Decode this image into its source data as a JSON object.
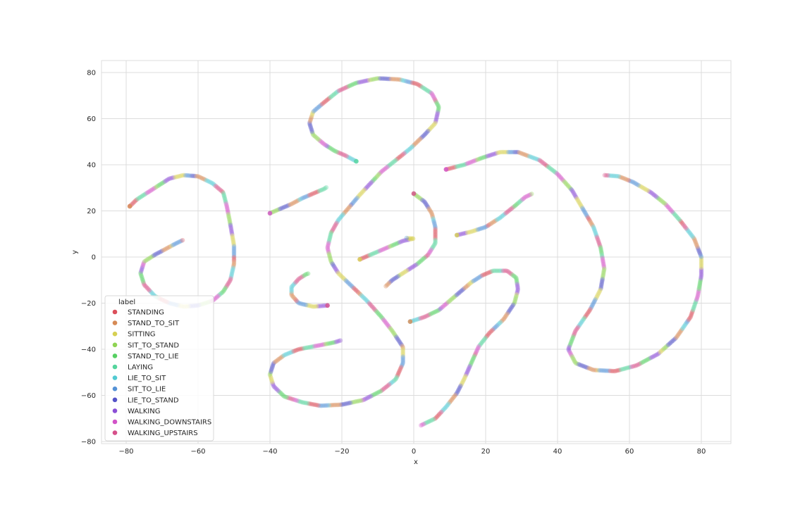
{
  "chart_data": {
    "type": "scatter",
    "title": "",
    "xlabel": "x",
    "ylabel": "y",
    "xlim": [
      -87,
      88
    ],
    "ylim": [
      -81,
      86
    ],
    "xticks": [
      -80,
      -60,
      -40,
      -20,
      0,
      20,
      40,
      60,
      80
    ],
    "yticks": [
      -80,
      -60,
      -40,
      -20,
      0,
      20,
      40,
      60,
      80
    ],
    "grid": true,
    "legend": {
      "title": "label",
      "placement": "lower-left",
      "entries": [
        {
          "label": "STANDING",
          "color": "#db4f5a"
        },
        {
          "label": "STAND_TO_SIT",
          "color": "#d68a55"
        },
        {
          "label": "SITTING",
          "color": "#d6d052"
        },
        {
          "label": "SIT_TO_STAND",
          "color": "#8fd453"
        },
        {
          "label": "STAND_TO_LIE",
          "color": "#56d062"
        },
        {
          "label": "LAYING",
          "color": "#55d59d"
        },
        {
          "label": "LIE_TO_SIT",
          "color": "#52cad2"
        },
        {
          "label": "SIT_TO_LIE",
          "color": "#5592d6"
        },
        {
          "label": "LIE_TO_STAND",
          "color": "#5453c8"
        },
        {
          "label": "WALKING",
          "color": "#8b4fd6"
        },
        {
          "label": "WALKING_DOWNSTAIRS",
          "color": "#d253c8"
        },
        {
          "label": "WALKING_UPSTAIRS",
          "color": "#d6508a"
        }
      ]
    },
    "series": [
      {
        "label_index": 1,
        "points": [
          [
            -79,
            22
          ],
          [
            -77,
            25
          ],
          [
            -74,
            28
          ],
          [
            -71,
            31
          ],
          [
            -68,
            34
          ],
          [
            -64,
            35.5
          ],
          [
            -60,
            35
          ],
          [
            -56,
            32
          ],
          [
            -53,
            28
          ],
          [
            -52,
            22
          ],
          [
            -51,
            14
          ],
          [
            -50,
            5
          ],
          [
            -50,
            -3
          ],
          [
            -51,
            -10
          ],
          [
            -53,
            -15
          ],
          [
            -56,
            -19
          ],
          [
            -60,
            -21
          ],
          [
            -64,
            -21.5
          ],
          [
            -68,
            -20
          ],
          [
            -72,
            -17
          ],
          [
            -75,
            -12
          ],
          [
            -76,
            -7
          ],
          [
            -75,
            -2
          ],
          [
            -72,
            1
          ],
          [
            -69,
            3.5
          ],
          [
            -66,
            6
          ],
          [
            -64,
            7.5
          ]
        ]
      },
      {
        "label_index": 10,
        "points": [
          [
            -40,
            19
          ],
          [
            -37,
            21
          ],
          [
            -34,
            23
          ],
          [
            -31,
            25.5
          ],
          [
            -28,
            27.5
          ],
          [
            -25,
            29.5
          ],
          [
            -24,
            30.5
          ]
        ]
      },
      {
        "label_index": 5,
        "points": [
          [
            -16,
            41.5
          ],
          [
            -19,
            44
          ],
          [
            -22,
            46
          ],
          [
            -25,
            49
          ],
          [
            -28,
            53
          ],
          [
            -29,
            58
          ],
          [
            -28,
            63
          ],
          [
            -25,
            67
          ],
          [
            -21,
            72
          ],
          [
            -16,
            75.5
          ],
          [
            -10,
            77.5
          ],
          [
            -4,
            77
          ],
          [
            1,
            75
          ],
          [
            5,
            71
          ],
          [
            7,
            65
          ],
          [
            6,
            58
          ],
          [
            3,
            53
          ],
          [
            -1,
            47
          ],
          [
            -5,
            42
          ],
          [
            -9,
            37
          ],
          [
            -12,
            32
          ],
          [
            -15,
            27
          ],
          [
            -18,
            21.5
          ],
          [
            -21,
            16
          ],
          [
            -23,
            10.5
          ],
          [
            -24,
            4
          ],
          [
            -23,
            -2
          ],
          [
            -21,
            -7
          ],
          [
            -17,
            -13
          ],
          [
            -13,
            -19
          ],
          [
            -9,
            -26
          ],
          [
            -6,
            -32
          ],
          [
            -3,
            -39
          ],
          [
            -3,
            -46
          ],
          [
            -5,
            -53
          ],
          [
            -9,
            -58
          ],
          [
            -14,
            -62
          ],
          [
            -20,
            -64
          ],
          [
            -26,
            -64.5
          ],
          [
            -31,
            -63
          ],
          [
            -36,
            -60.5
          ],
          [
            -39,
            -56
          ],
          [
            -40,
            -51
          ],
          [
            -39,
            -46
          ],
          [
            -36,
            -42.5
          ],
          [
            -32,
            -40
          ],
          [
            -27,
            -38.5
          ],
          [
            -22,
            -37
          ],
          [
            -20,
            -36
          ]
        ]
      },
      {
        "label_index": 11,
        "points": [
          [
            -24,
            -21
          ],
          [
            -28,
            -21.5
          ],
          [
            -32,
            -20
          ],
          [
            -34,
            -16.5
          ],
          [
            -34,
            -13
          ],
          [
            -32,
            -9.5
          ],
          [
            -30,
            -7.5
          ],
          [
            -29,
            -7
          ]
        ]
      },
      {
        "label_index": 2,
        "points": [
          [
            -15,
            -1
          ],
          [
            -12,
            1
          ],
          [
            -9,
            3
          ],
          [
            -6,
            5
          ],
          [
            -3,
            7
          ],
          [
            0,
            8
          ],
          [
            -2,
            8.2
          ]
        ]
      },
      {
        "label_index": 11,
        "points": [
          [
            0,
            27.5
          ],
          [
            3,
            24
          ],
          [
            5,
            19
          ],
          [
            6,
            13
          ],
          [
            6,
            6
          ],
          [
            4,
            1
          ],
          [
            1,
            -3
          ],
          [
            -3,
            -7
          ],
          [
            -6,
            -10
          ],
          [
            -8,
            -13
          ]
        ]
      },
      {
        "label_index": 1,
        "points": [
          [
            -1,
            -28
          ],
          [
            3,
            -26
          ],
          [
            7,
            -23
          ],
          [
            10,
            -19
          ],
          [
            13,
            -15
          ],
          [
            16,
            -11
          ],
          [
            19,
            -8
          ],
          [
            22,
            -6
          ],
          [
            26,
            -6
          ],
          [
            28.5,
            -9
          ],
          [
            29,
            -14
          ],
          [
            28,
            -20
          ],
          [
            25,
            -27
          ],
          [
            21,
            -33
          ],
          [
            18,
            -39
          ],
          [
            16,
            -46
          ],
          [
            14,
            -53
          ],
          [
            12,
            -59
          ],
          [
            9,
            -65
          ],
          [
            6,
            -70
          ],
          [
            2,
            -73
          ]
        ]
      },
      {
        "label_index": 2,
        "points": [
          [
            12,
            9.5
          ],
          [
            16,
            11
          ],
          [
            20,
            13
          ],
          [
            24,
            17
          ],
          [
            28,
            22
          ],
          [
            31,
            26
          ],
          [
            33,
            27.5
          ]
        ]
      },
      {
        "label_index": 10,
        "points": [
          [
            9,
            38
          ],
          [
            14,
            40
          ],
          [
            19,
            43
          ],
          [
            24,
            45.5
          ],
          [
            29,
            45.5
          ],
          [
            35,
            42
          ],
          [
            40,
            36
          ],
          [
            44,
            29
          ],
          [
            47,
            21
          ],
          [
            50,
            13
          ],
          [
            52,
            4
          ],
          [
            53,
            -5
          ],
          [
            52,
            -14
          ],
          [
            49,
            -23
          ],
          [
            45,
            -32
          ],
          [
            43,
            -40
          ],
          [
            45,
            -46
          ],
          [
            50,
            -49
          ],
          [
            56,
            -49.5
          ],
          [
            62,
            -47
          ],
          [
            68,
            -42
          ],
          [
            73,
            -35
          ],
          [
            77,
            -26
          ],
          [
            79,
            -17
          ],
          [
            80,
            -8
          ],
          [
            80,
            0
          ],
          [
            78,
            8
          ],
          [
            74,
            16
          ],
          [
            70,
            23
          ],
          [
            66,
            28
          ],
          [
            61,
            32.5
          ],
          [
            57,
            35
          ],
          [
            53,
            35.5
          ]
        ]
      }
    ]
  }
}
